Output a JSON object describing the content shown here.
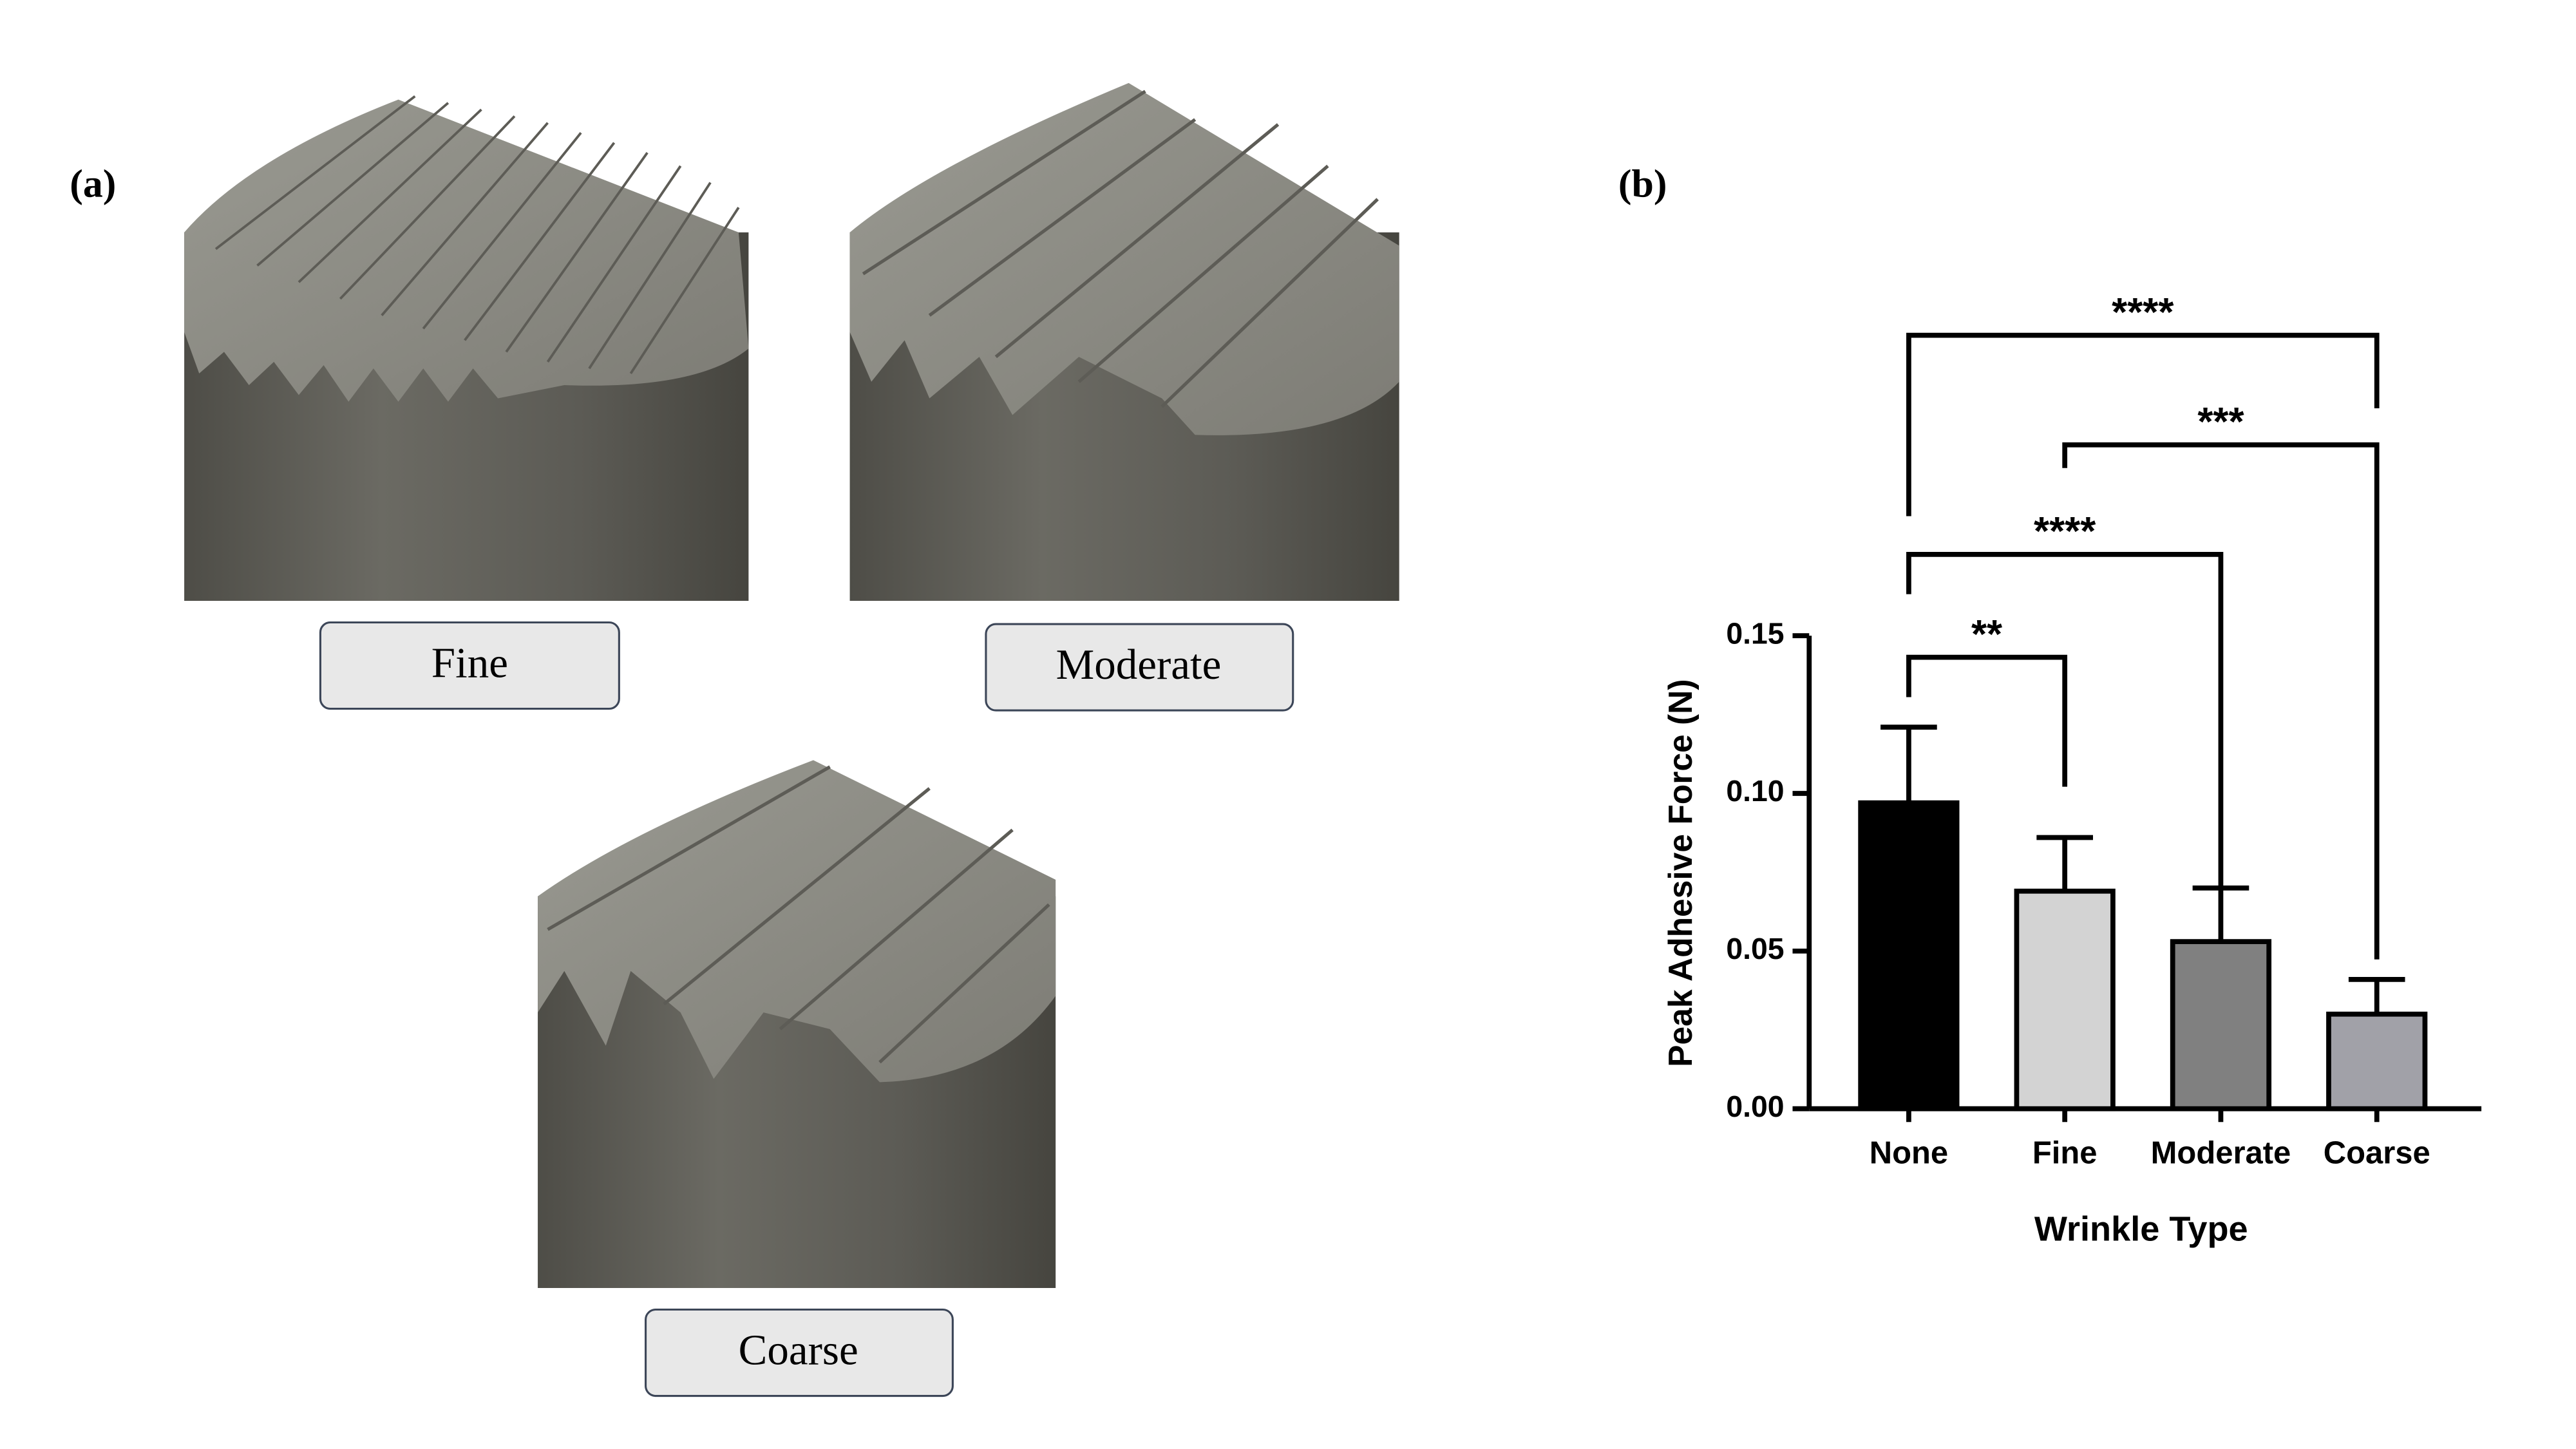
{
  "figure": {
    "panel_labels": [
      "(a)",
      "(b)"
    ],
    "render_labels": [
      "Fine",
      "Moderate",
      "Coarse"
    ]
  },
  "chart_data": {
    "type": "bar",
    "ylabel": "Peak  Adhesive Force (N)",
    "xlabel": "Wrinkle Type",
    "categories": [
      "None",
      "Fine",
      "Moderate",
      "Coarse"
    ],
    "values": [
      0.097,
      0.069,
      0.053,
      0.03
    ],
    "errors": [
      0.024,
      0.017,
      0.017,
      0.011
    ],
    "colors": [
      "#000000",
      "#d3d3d3",
      "#808080",
      "#a1a1a8"
    ],
    "ylim": [
      0,
      0.15
    ],
    "yticks": [
      {
        "value": 0,
        "label": "0.00"
      },
      {
        "value": 0.05,
        "label": "0.05"
      },
      {
        "value": 0.1,
        "label": "0.10"
      },
      {
        "value": 0.15,
        "label": "0.15"
      }
    ],
    "significance": [
      {
        "from": 0,
        "to": 1,
        "label": "**"
      },
      {
        "from": 0,
        "to": 2,
        "label": "****"
      },
      {
        "from": 1,
        "to": 3,
        "label": "***"
      },
      {
        "from": 0,
        "to": 3,
        "label": "****"
      }
    ]
  }
}
